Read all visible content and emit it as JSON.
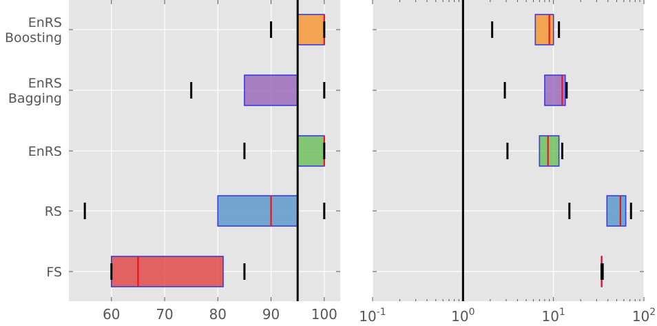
{
  "chart_data": [
    {
      "type": "box",
      "categories": [
        "FS",
        "RS",
        "EnRS",
        "EnRS\nBagging",
        "EnRS\nBoosting"
      ],
      "xlim": [
        52,
        103
      ],
      "xscale": "linear",
      "xticks": [
        60,
        70,
        80,
        90,
        100
      ],
      "xtick_labels": [
        "60",
        "70",
        "80",
        "90",
        "100"
      ],
      "reference_line": 95,
      "grid": true,
      "boxes": [
        {
          "category": "FS",
          "color": "#e24a4a",
          "q1": 60,
          "median": 65,
          "q3": 81,
          "whisker_low": 60,
          "whisker_high": 85
        },
        {
          "category": "RS",
          "color": "#5e9acb",
          "q1": 80,
          "median": 90,
          "q3": 95,
          "whisker_low": 55,
          "whisker_high": 100
        },
        {
          "category": "EnRS",
          "color": "#70bf62",
          "q1": 95,
          "median": 100,
          "q3": 100,
          "whisker_low": 85,
          "whisker_high": 100
        },
        {
          "category": "EnRS\nBagging",
          "color": "#9e6cbd",
          "q1": 85,
          "median": 95,
          "q3": 95,
          "whisker_low": 75,
          "whisker_high": 100
        },
        {
          "category": "EnRS\nBoosting",
          "color": "#f5993a",
          "q1": 95,
          "median": 100,
          "q3": 100,
          "whisker_low": 90,
          "whisker_high": 100
        }
      ]
    },
    {
      "type": "box",
      "categories": [
        "FS",
        "RS",
        "EnRS",
        "EnRS\nBagging",
        "EnRS\nBoosting"
      ],
      "xlim": [
        0.1,
        100
      ],
      "xscale": "log",
      "xtick_labels": [
        {
          "base": "10",
          "exp": "-1"
        },
        {
          "base": "10",
          "exp": "0"
        },
        {
          "base": "10",
          "exp": "1"
        },
        {
          "base": "10",
          "exp": "2"
        }
      ],
      "reference_line": 1,
      "grid": true,
      "boxes": [
        {
          "category": "FS",
          "color": "#e24a4a",
          "q1": 34,
          "median": 34,
          "q3": 34,
          "whisker_low": 34,
          "whisker_high": 35
        },
        {
          "category": "RS",
          "color": "#5e9acb",
          "q1": 39,
          "median": 55,
          "q3": 63,
          "whisker_low": 15,
          "whisker_high": 72
        },
        {
          "category": "EnRS",
          "color": "#70bf62",
          "q1": 7,
          "median": 8.7,
          "q3": 11.5,
          "whisker_low": 3.1,
          "whisker_high": 12.5
        },
        {
          "category": "EnRS\nBagging",
          "color": "#9e6cbd",
          "q1": 8,
          "median": 12.5,
          "q3": 13.5,
          "whisker_low": 2.9,
          "whisker_high": 14
        },
        {
          "category": "EnRS\nBoosting",
          "color": "#f5993a",
          "q1": 6.3,
          "median": 9,
          "q3": 10,
          "whisker_low": 2.1,
          "whisker_high": 11.5
        }
      ]
    }
  ]
}
